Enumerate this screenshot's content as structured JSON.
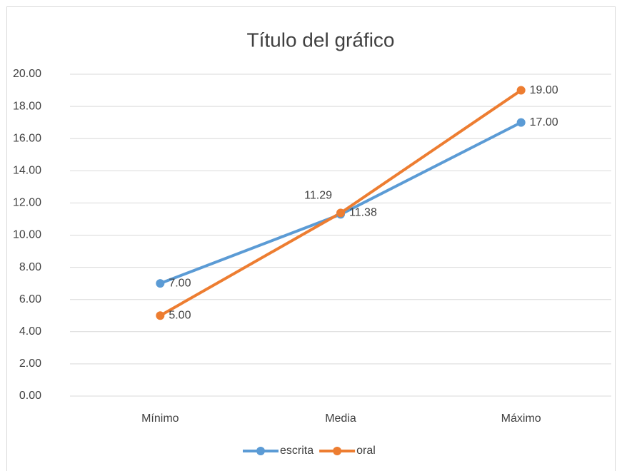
{
  "chart_data": {
    "type": "line",
    "title": "Título del gráfico",
    "categories": [
      "Mínimo",
      "Media",
      "Máximo"
    ],
    "series": [
      {
        "name": "escrita",
        "color": "#5b9bd5",
        "values": [
          7,
          11.29,
          17
        ],
        "value_labels": [
          "7.00",
          "11.29",
          "17.00"
        ]
      },
      {
        "name": "oral",
        "color": "#ed7d31",
        "values": [
          5,
          11.38,
          19
        ],
        "value_labels": [
          "5.00",
          "11.38",
          "19.00"
        ]
      }
    ],
    "ylim": [
      0,
      20
    ],
    "yticks": [
      {
        "value": 0,
        "label": "0.00"
      },
      {
        "value": 2,
        "label": "2.00"
      },
      {
        "value": 4,
        "label": "4.00"
      },
      {
        "value": 6,
        "label": "6.00"
      },
      {
        "value": 8,
        "label": "8.00"
      },
      {
        "value": 10,
        "label": "10.00"
      },
      {
        "value": 12,
        "label": "12.00"
      },
      {
        "value": 14,
        "label": "14.00"
      },
      {
        "value": 16,
        "label": "16.00"
      },
      {
        "value": 18,
        "label": "18.00"
      },
      {
        "value": 20,
        "label": "20.00"
      }
    ],
    "grid": true,
    "legend": "bottom"
  }
}
